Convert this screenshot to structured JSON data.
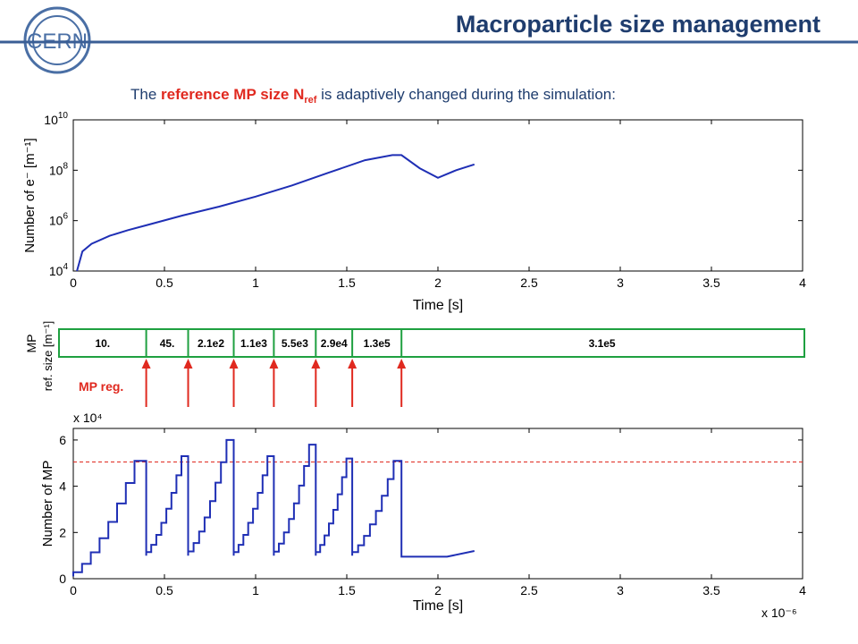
{
  "slide": {
    "title": "Macroparticle size management",
    "logo_text": "CERN",
    "subtitle_before": "The ",
    "subtitle_highlight": "reference MP size N",
    "subtitle_highlight_sub": "ref",
    "subtitle_after": " is adaptively changed during the simulation:"
  },
  "colors": {
    "title": "#1f3d6e",
    "accent_line": "#3a5e95",
    "logo": "#4a6fa5",
    "highlight": "#e0291f",
    "series": "#1f2fb5",
    "band": "#1fa040",
    "arrow": "#e0291f",
    "threshold": "#e0291f"
  },
  "chart_data": [
    {
      "type": "line",
      "title": "",
      "xlabel": "Time [s]",
      "ylabel": "Number of e⁻ [m⁻¹]",
      "yscale": "log",
      "xlim": [
        0,
        4
      ],
      "ylim": [
        10000,
        10000000000
      ],
      "xticks": [
        "0",
        "0.5",
        "1",
        "1.5",
        "2",
        "2.5",
        "3",
        "3.5",
        "4"
      ],
      "yticks": [
        {
          "base": "10",
          "exp": "4",
          "value": 10000
        },
        {
          "base": "10",
          "exp": "6",
          "value": 1000000
        },
        {
          "base": "10",
          "exp": "8",
          "value": 100000000
        },
        {
          "base": "10",
          "exp": "10",
          "value": 10000000000
        }
      ],
      "x_multiplier_note": "",
      "series": [
        {
          "x": [
            0.02,
            0.05,
            0.1,
            0.2,
            0.3,
            0.4,
            0.6,
            0.8,
            1.0,
            1.2,
            1.4,
            1.6,
            1.75,
            1.8,
            1.9,
            2.0,
            2.1,
            2.2
          ],
          "y": [
            10000,
            60000,
            120000,
            250000,
            420000,
            650000,
            1600000,
            3600000,
            9000000,
            25000000,
            80000000,
            250000000,
            400000000,
            400000000,
            120000000,
            50000000,
            100000000,
            170000000
          ]
        }
      ]
    },
    {
      "type": "bar",
      "ylabel": "MP ref. size [m⁻¹]",
      "segments": [
        {
          "start": 0,
          "end": 0.4,
          "label": "10."
        },
        {
          "start": 0.4,
          "end": 0.63,
          "label": "45."
        },
        {
          "start": 0.63,
          "end": 0.88,
          "label": "2.1e2"
        },
        {
          "start": 0.88,
          "end": 1.1,
          "label": "1.1e3"
        },
        {
          "start": 1.1,
          "end": 1.33,
          "label": "5.5e3"
        },
        {
          "start": 1.33,
          "end": 1.53,
          "label": "2.9e4"
        },
        {
          "start": 1.53,
          "end": 1.8,
          "label": "1.3e5"
        },
        {
          "start": 1.8,
          "end": 4,
          "label": "3.1e5"
        }
      ],
      "regeneration_times": [
        0.4,
        0.63,
        0.88,
        1.1,
        1.33,
        1.53,
        1.8
      ],
      "regeneration_label": "MP reg."
    },
    {
      "type": "line",
      "title": "",
      "xlabel": "Time [s]",
      "ylabel": "Number of MP",
      "xlim": [
        0,
        4
      ],
      "ylim": [
        0,
        6.5
      ],
      "y_multiplier": "x 10⁴",
      "x_multiplier": "x 10⁻⁶",
      "xticks": [
        "0",
        "0.5",
        "1",
        "1.5",
        "2",
        "2.5",
        "3",
        "3.5",
        "4"
      ],
      "yticks": [
        "0",
        "2",
        "4",
        "6"
      ],
      "threshold": 5.05,
      "steps_per_cycle": 8,
      "cycles": [
        {
          "start": 0.0,
          "end": 0.4,
          "low": 0.1,
          "peak": 5.1
        },
        {
          "start": 0.4,
          "end": 0.63,
          "low": 1.0,
          "peak": 5.3
        },
        {
          "start": 0.63,
          "end": 0.88,
          "low": 1.0,
          "peak": 6.0
        },
        {
          "start": 0.88,
          "end": 1.1,
          "low": 1.0,
          "peak": 5.3
        },
        {
          "start": 1.1,
          "end": 1.33,
          "low": 1.0,
          "peak": 5.8
        },
        {
          "start": 1.33,
          "end": 1.53,
          "low": 1.0,
          "peak": 5.2
        },
        {
          "start": 1.53,
          "end": 1.8,
          "low": 1.0,
          "peak": 5.1
        }
      ],
      "tail": {
        "start": 1.8,
        "end": 2.2,
        "from": 0.95,
        "to": 1.2
      }
    }
  ]
}
